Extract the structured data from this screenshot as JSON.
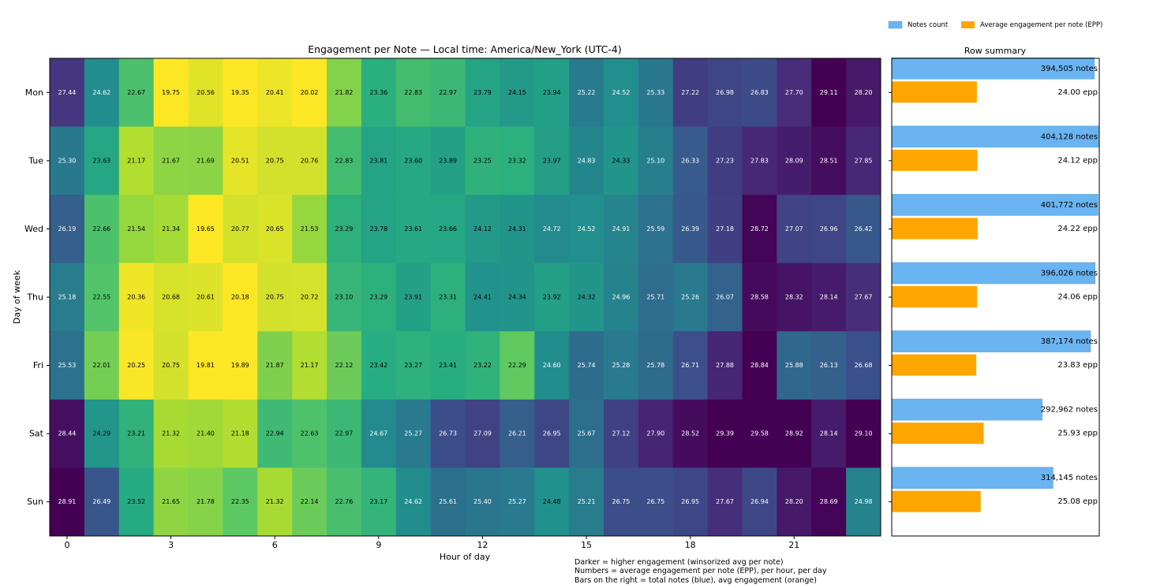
{
  "chart_data": [
    {
      "type": "heatmap",
      "title": "Engagement per Note — Local time: America/New_York (UTC-4)",
      "xlabel": "Hour of day",
      "ylabel": "Day of week",
      "x_ticks": [
        "0",
        "3",
        "6",
        "9",
        "12",
        "15",
        "18",
        "21"
      ],
      "x_tick_hours": [
        0,
        3,
        6,
        9,
        12,
        15,
        18,
        21
      ],
      "rows": [
        "Mon",
        "Tue",
        "Wed",
        "Thu",
        "Fri",
        "Sat",
        "Sun"
      ],
      "hours": [
        0,
        1,
        2,
        3,
        4,
        5,
        6,
        7,
        8,
        9,
        10,
        11,
        12,
        13,
        14,
        15,
        16,
        17,
        18,
        19,
        20,
        21,
        22,
        23
      ],
      "values": [
        [
          "27.44",
          "24.62",
          "22.67",
          "19.75",
          "20.56",
          "19.35",
          "20.41",
          "20.02",
          "21.82",
          "23.36",
          "22.83",
          "22.97",
          "23.79",
          "24.15",
          "23.94",
          "25.22",
          "24.52",
          "25.33",
          "27.22",
          "26.98",
          "26.83",
          "27.70",
          "29.11",
          "28.20"
        ],
        [
          "25.30",
          "23.63",
          "21.17",
          "21.67",
          "21.69",
          "20.51",
          "20.75",
          "20.76",
          "22.83",
          "23.81",
          "23.60",
          "23.89",
          "23.25",
          "23.32",
          "23.97",
          "24.83",
          "24.33",
          "25.10",
          "26.33",
          "27.23",
          "27.83",
          "28.09",
          "28.51",
          "27.85"
        ],
        [
          "26.19",
          "22.66",
          "21.54",
          "21.34",
          "19.65",
          "20.77",
          "20.65",
          "21.53",
          "23.29",
          "23.78",
          "23.61",
          "23.66",
          "24.12",
          "24.31",
          "24.72",
          "24.52",
          "24.91",
          "25.59",
          "26.39",
          "27.18",
          "28.72",
          "27.07",
          "26.96",
          "26.42"
        ],
        [
          "25.18",
          "22.55",
          "20.36",
          "20.68",
          "20.61",
          "20.18",
          "20.75",
          "20.72",
          "23.10",
          "23.29",
          "23.91",
          "23.31",
          "24.41",
          "24.34",
          "23.92",
          "24.32",
          "24.96",
          "25.71",
          "25.26",
          "26.07",
          "28.58",
          "28.32",
          "28.14",
          "27.67"
        ],
        [
          "25.53",
          "22.01",
          "20.25",
          "20.75",
          "19.81",
          "19.89",
          "21.87",
          "21.17",
          "22.12",
          "23.42",
          "23.27",
          "23.41",
          "23.22",
          "22.29",
          "24.60",
          "25.74",
          "25.28",
          "25.78",
          "26.71",
          "27.88",
          "28.84",
          "25.88",
          "26.13",
          "26.68"
        ],
        [
          "28.44",
          "24.29",
          "23.21",
          "21.32",
          "21.40",
          "21.18",
          "22.94",
          "22.63",
          "22.97",
          "24.67",
          "25.27",
          "26.73",
          "27.09",
          "26.21",
          "26.95",
          "25.67",
          "27.12",
          "27.90",
          "28.52",
          "29.39",
          "29.58",
          "28.92",
          "28.14",
          "29.10"
        ],
        [
          "28.91",
          "26.49",
          "23.52",
          "21.65",
          "21.78",
          "22.35",
          "21.32",
          "22.14",
          "22.76",
          "23.17",
          "24.62",
          "25.61",
          "25.40",
          "25.27",
          "24.48",
          "25.21",
          "26.75",
          "26.75",
          "26.95",
          "27.67",
          "26.94",
          "28.20",
          "28.69",
          "24.98"
        ]
      ],
      "color_scale": {
        "low": 20.2,
        "high": 28.8,
        "colormap": "viridis_r"
      }
    },
    {
      "type": "bar",
      "title": "Row summary",
      "orientation": "horizontal",
      "categories": [
        "Mon",
        "Tue",
        "Wed",
        "Thu",
        "Fri",
        "Sat",
        "Sun"
      ],
      "series": [
        {
          "name": "Notes count",
          "color": "#6ab4f1",
          "values": [
            394505,
            404128,
            401772,
            396026,
            387174,
            292962,
            314145
          ],
          "labels": [
            "394,505 notes",
            "404,128 notes",
            "401,772 notes",
            "396,026 notes",
            "387,174 notes",
            "292,962 notes",
            "314,145 notes"
          ],
          "xlim": [
            0,
            404128
          ]
        },
        {
          "name": "Average engagement per note (EPP)",
          "color": "#ffa500",
          "values": [
            24.0,
            24.12,
            24.22,
            24.06,
            23.83,
            25.93,
            25.08
          ],
          "labels": [
            "24.00 epp",
            "24.12 epp",
            "24.22 epp",
            "24.06 epp",
            "23.83 epp",
            "25.93 epp",
            "25.08 epp"
          ],
          "xlim": [
            0,
            58.5
          ]
        }
      ],
      "legend_position": "top-right"
    }
  ],
  "legend": {
    "notes_label": "Notes count",
    "epp_label": "Average engagement per note (EPP)"
  },
  "footnote": [
    "Darker = higher engagement (winsorized avg per note)",
    "Numbers = average engagement per note (EPP), per hour, per day",
    "Bars on the right = total notes (blue), avg engagement (orange)"
  ]
}
